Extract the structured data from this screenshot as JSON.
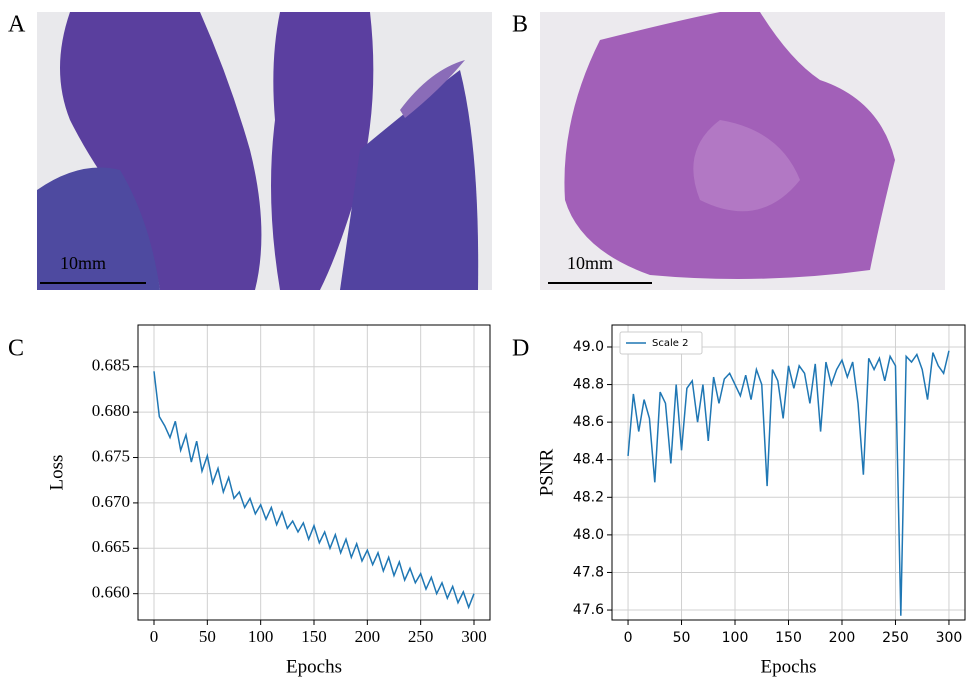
{
  "panel_labels": [
    "A",
    "B",
    "C",
    "D"
  ],
  "images": [
    {
      "scale_label": "10mm"
    },
    {
      "scale_label": "10mm"
    }
  ],
  "chart_data": [
    {
      "type": "line",
      "xlabel": "Epochs",
      "ylabel": "Loss",
      "grid": true,
      "xlim": [
        -15,
        315
      ],
      "xticks": [
        0,
        50,
        100,
        150,
        200,
        250,
        300
      ],
      "ylim": [
        0.6571,
        0.6896
      ],
      "yticks": [
        {
          "value": 0.66,
          "label": "0.660"
        },
        0.665,
        {
          "value": 0.67,
          "label": "0.670"
        },
        0.675,
        {
          "value": 0.68,
          "label": "0.680"
        },
        0.685
      ],
      "x": [
        0,
        5,
        10,
        15,
        20,
        25,
        30,
        35,
        40,
        45,
        50,
        55,
        60,
        65,
        70,
        75,
        80,
        85,
        90,
        95,
        100,
        105,
        110,
        115,
        120,
        125,
        130,
        135,
        140,
        145,
        150,
        155,
        160,
        165,
        170,
        175,
        180,
        185,
        190,
        195,
        200,
        205,
        210,
        215,
        220,
        225,
        230,
        235,
        240,
        245,
        250,
        255,
        260,
        265,
        270,
        275,
        280,
        285,
        290,
        295,
        300
      ],
      "series": [
        {
          "color": "#1f77b4",
          "values": [
            0.6845,
            0.6795,
            0.6785,
            0.6772,
            0.679,
            0.6758,
            0.6775,
            0.6745,
            0.6768,
            0.6735,
            0.6752,
            0.6722,
            0.6738,
            0.6712,
            0.6728,
            0.6705,
            0.6712,
            0.6695,
            0.6705,
            0.6688,
            0.6698,
            0.6682,
            0.6695,
            0.6676,
            0.669,
            0.6672,
            0.668,
            0.6668,
            0.6678,
            0.666,
            0.6675,
            0.6656,
            0.6668,
            0.665,
            0.6665,
            0.6645,
            0.666,
            0.664,
            0.6655,
            0.6636,
            0.6648,
            0.6632,
            0.6645,
            0.6625,
            0.664,
            0.662,
            0.6635,
            0.6615,
            0.6628,
            0.6612,
            0.6622,
            0.6605,
            0.6618,
            0.66,
            0.6612,
            0.6595,
            0.6608,
            0.659,
            0.6602,
            0.6585,
            0.66
          ]
        }
      ]
    },
    {
      "type": "line",
      "xlabel": "Epochs",
      "ylabel": "PSNR",
      "grid": true,
      "legend": "upper left",
      "xlim": [
        -15,
        315
      ],
      "xticks": [
        0,
        50,
        100,
        150,
        200,
        250,
        300
      ],
      "ylim": [
        47.547,
        49.117
      ],
      "yticks": [
        47.6,
        47.8,
        {
          "value": 48,
          "label": "48.0"
        },
        48.2,
        48.4,
        48.6,
        48.8,
        {
          "value": 49,
          "label": "49.0"
        }
      ],
      "x": [
        0,
        5,
        10,
        15,
        20,
        25,
        30,
        35,
        40,
        45,
        50,
        55,
        60,
        65,
        70,
        75,
        80,
        85,
        90,
        95,
        100,
        105,
        110,
        115,
        120,
        125,
        130,
        135,
        140,
        145,
        150,
        155,
        160,
        165,
        170,
        175,
        180,
        185,
        190,
        195,
        200,
        205,
        210,
        215,
        220,
        225,
        230,
        235,
        240,
        245,
        250,
        255,
        260,
        265,
        270,
        275,
        280,
        285,
        290,
        295,
        300
      ],
      "series": [
        {
          "name": "Scale 2",
          "color": "#1f77b4",
          "values": [
            48.42,
            48.75,
            48.55,
            48.72,
            48.62,
            48.28,
            48.76,
            48.7,
            48.38,
            48.8,
            48.45,
            48.78,
            48.82,
            48.6,
            48.8,
            48.5,
            48.84,
            48.7,
            48.83,
            48.86,
            48.8,
            48.74,
            48.85,
            48.72,
            48.88,
            48.8,
            48.26,
            48.88,
            48.82,
            48.62,
            48.9,
            48.78,
            48.9,
            48.86,
            48.7,
            48.91,
            48.55,
            48.92,
            48.8,
            48.88,
            48.93,
            48.84,
            48.92,
            48.7,
            48.32,
            48.94,
            48.88,
            48.94,
            48.82,
            48.95,
            48.9,
            47.57,
            48.95,
            48.92,
            48.96,
            48.88,
            48.72,
            48.97,
            48.9,
            48.86,
            48.98
          ]
        }
      ]
    }
  ]
}
